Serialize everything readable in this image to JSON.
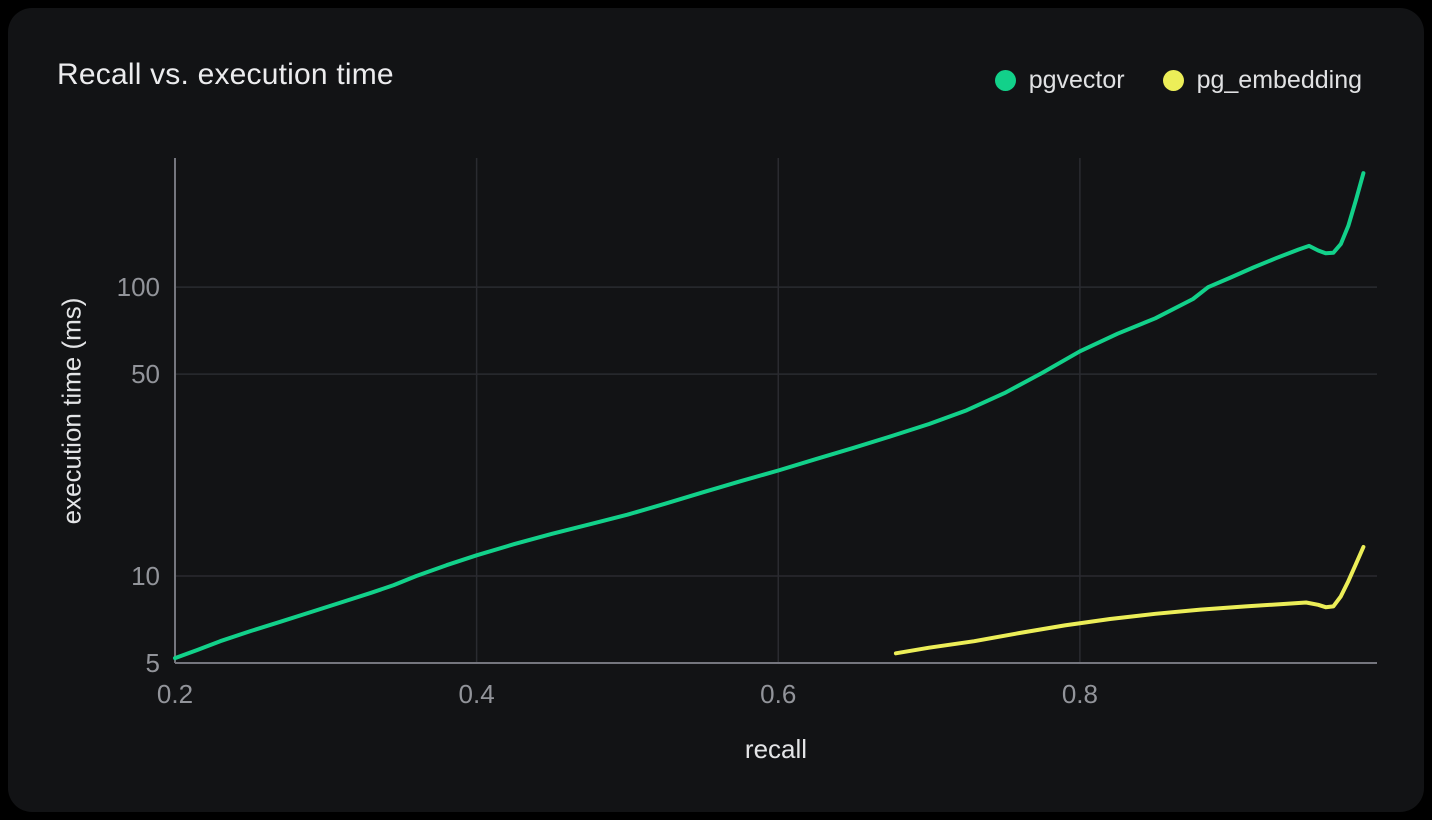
{
  "title": "Recall vs. execution time",
  "colors": {
    "background": "#000000",
    "card": "#121315",
    "grid": "#2a2b30",
    "axis": "#75767e",
    "title_text": "#ececee",
    "tick_text": "#92949a",
    "axis_title_text": "#e3e4e6",
    "pgvector": "#12d18a",
    "pg_embedding": "#ecee58"
  },
  "legend": {
    "position": "top-right",
    "items": [
      {
        "label": "pgvector",
        "color": "#12d18a"
      },
      {
        "label": "pg_embedding",
        "color": "#ecee58"
      }
    ]
  },
  "chart_data": {
    "type": "line",
    "title": "Recall vs. execution time",
    "xlabel": "recall",
    "ylabel": "execution time (ms)",
    "x_scale": "linear",
    "y_scale": "log",
    "xlim": [
      0.2,
      0.997
    ],
    "ylim": [
      5,
      280
    ],
    "grid": true,
    "x_ticks": [
      0.2,
      0.4,
      0.6,
      0.8
    ],
    "x_tick_labels": [
      "0.2",
      "0.4",
      "0.6",
      "0.8"
    ],
    "y_ticks": [
      5,
      10,
      50,
      100
    ],
    "y_tick_labels": [
      "5",
      "10",
      "50",
      "100"
    ],
    "series": [
      {
        "name": "pgvector",
        "color": "#12d18a",
        "points": [
          [
            0.2,
            5.2
          ],
          [
            0.215,
            5.55
          ],
          [
            0.23,
            5.95
          ],
          [
            0.25,
            6.45
          ],
          [
            0.27,
            6.95
          ],
          [
            0.29,
            7.5
          ],
          [
            0.31,
            8.1
          ],
          [
            0.33,
            8.75
          ],
          [
            0.345,
            9.3
          ],
          [
            0.36,
            10.0
          ],
          [
            0.38,
            10.9
          ],
          [
            0.4,
            11.8
          ],
          [
            0.425,
            12.9
          ],
          [
            0.45,
            14.0
          ],
          [
            0.475,
            15.1
          ],
          [
            0.5,
            16.3
          ],
          [
            0.525,
            17.8
          ],
          [
            0.55,
            19.5
          ],
          [
            0.575,
            21.3
          ],
          [
            0.6,
            23.2
          ],
          [
            0.625,
            25.4
          ],
          [
            0.65,
            27.8
          ],
          [
            0.675,
            30.5
          ],
          [
            0.7,
            33.6
          ],
          [
            0.725,
            37.5
          ],
          [
            0.75,
            43.0
          ],
          [
            0.775,
            50.5
          ],
          [
            0.8,
            60.0
          ],
          [
            0.825,
            69.0
          ],
          [
            0.85,
            78.0
          ],
          [
            0.875,
            91.0
          ],
          [
            0.885,
            100.0
          ],
          [
            0.9,
            108.0
          ],
          [
            0.915,
            117.0
          ],
          [
            0.93,
            126.0
          ],
          [
            0.945,
            135.0
          ],
          [
            0.952,
            139.0
          ],
          [
            0.958,
            134.0
          ],
          [
            0.963,
            131.0
          ],
          [
            0.968,
            131.5
          ],
          [
            0.973,
            141.0
          ],
          [
            0.978,
            163.0
          ],
          [
            0.983,
            200.0
          ],
          [
            0.988,
            248.0
          ]
        ]
      },
      {
        "name": "pg_embedding",
        "color": "#ecee58",
        "points": [
          [
            0.678,
            5.4
          ],
          [
            0.7,
            5.65
          ],
          [
            0.73,
            5.95
          ],
          [
            0.76,
            6.35
          ],
          [
            0.79,
            6.75
          ],
          [
            0.82,
            7.1
          ],
          [
            0.85,
            7.4
          ],
          [
            0.88,
            7.65
          ],
          [
            0.91,
            7.85
          ],
          [
            0.935,
            8.0
          ],
          [
            0.95,
            8.1
          ],
          [
            0.958,
            7.95
          ],
          [
            0.963,
            7.8
          ],
          [
            0.968,
            7.85
          ],
          [
            0.973,
            8.5
          ],
          [
            0.978,
            9.6
          ],
          [
            0.983,
            11.0
          ],
          [
            0.988,
            12.6
          ]
        ]
      }
    ]
  }
}
